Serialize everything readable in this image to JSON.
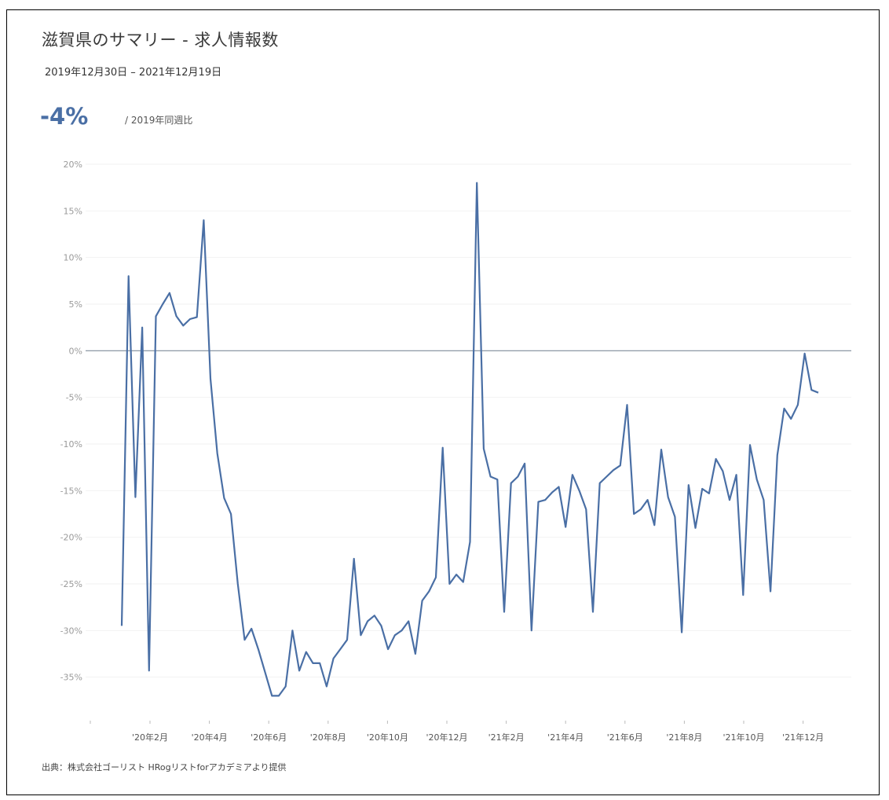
{
  "header": {
    "title": "滋賀県のサマリー - 求人情報数",
    "period": "2019年12月30日 – 2021年12月19日",
    "kpi_value": "-4%",
    "kpi_label": "/ 2019年同週比"
  },
  "footer": {
    "source": "出典：株式会社ゴーリスト HRogリストforアカデミアより提供"
  },
  "colors": {
    "line": "#4a6fa5",
    "zero_line": "#7f8c99",
    "grid": "#f2f2f2"
  },
  "chart_data": {
    "type": "line",
    "title": "滋賀県のサマリー - 求人情報数",
    "xlabel": "",
    "ylabel": "",
    "ylim": [
      -40,
      20
    ],
    "yticks": [
      20,
      15,
      10,
      5,
      0,
      -5,
      -10,
      -15,
      -20,
      -25,
      -30,
      -35
    ],
    "ytick_labels": [
      "20%",
      "15%",
      "10%",
      "5%",
      "0%",
      "-5%",
      "-10%",
      "-15%",
      "-20%",
      "-25%",
      "-30%",
      "-35%"
    ],
    "x_tick_labels": [
      "'20年2月",
      "'20年4月",
      "'20年6月",
      "'20年8月",
      "'20年10月",
      "'20年12月",
      "'21年2月",
      "'21年4月",
      "'21年6月",
      "'21年8月",
      "'21年10月",
      "'21年12月"
    ],
    "grid": true,
    "series": [
      {
        "values": [
          -29.5,
          8,
          -15.7,
          2.5,
          -34.3,
          3.7,
          5,
          6.2,
          3.7,
          2.7,
          3.4,
          3.6,
          14,
          -3,
          -11,
          -15.8,
          -17.5,
          -25,
          -31,
          -29.8,
          -32,
          -34.5,
          -37,
          -37,
          -36,
          -30,
          -34.3,
          -32.3,
          -33.5,
          -33.5,
          -36,
          -33,
          -32,
          -31,
          -22.3,
          -30.5,
          -29,
          -28.4,
          -29.5,
          -32,
          -30.5,
          -30,
          -29,
          -32.5,
          -26.8,
          -25.8,
          -24.3,
          -10.4,
          -25,
          -24,
          -24.8,
          -20.5,
          18,
          -10.5,
          -13.5,
          -13.8,
          -28,
          -14.2,
          -13.5,
          -12.1,
          -30,
          -16.2,
          -16,
          -15.2,
          -14.6,
          -18.9,
          -13.3,
          -15,
          -17,
          -28,
          -14.2,
          -13.5,
          -12.8,
          -12.3,
          -5.8,
          -17.5,
          -17,
          -16,
          -18.7,
          -10.6,
          -15.7,
          -17.8,
          -30.2,
          -14.4,
          -19,
          -14.8,
          -15.3,
          -11.6,
          -12.9,
          -16,
          -13.3,
          -26.2,
          -10.1,
          -13.8,
          -16,
          -25.8,
          -11.2,
          -6.2,
          -7.3,
          -5.8,
          -0.3,
          -4.2,
          -4.5
        ]
      }
    ]
  }
}
